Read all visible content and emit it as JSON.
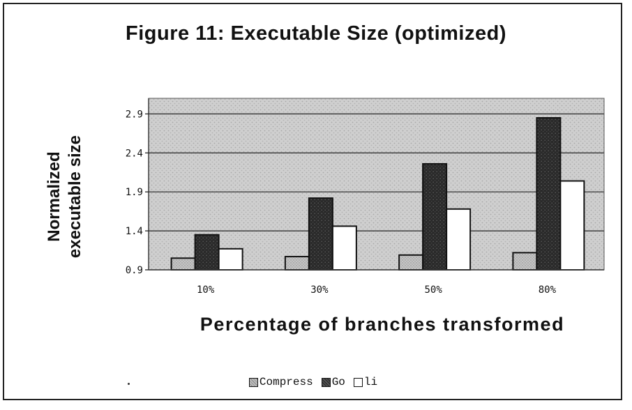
{
  "chart_data": {
    "type": "bar",
    "title": "Figure 11: Executable Size (optimized)",
    "ylabel": "Normalized executable size",
    "xlabel": "Percentage of branches transformed",
    "categories": [
      "10%",
      "30%",
      "50%",
      "80%"
    ],
    "yticks": [
      "2.9",
      "2.4",
      "1.9",
      "1.4",
      "0.9"
    ],
    "ylim": [
      0.9,
      3.1
    ],
    "grid": true,
    "legend_position": "bottom",
    "series": [
      {
        "name": "Compress",
        "values": [
          1.05,
          1.07,
          1.09,
          1.12
        ],
        "color": "#b8b8b8"
      },
      {
        "name": "Go",
        "values": [
          1.35,
          1.82,
          2.26,
          2.85
        ],
        "color": "#333333"
      },
      {
        "name": "li",
        "values": [
          1.17,
          1.46,
          1.68,
          2.04
        ],
        "color": "#ffffff"
      }
    ]
  }
}
